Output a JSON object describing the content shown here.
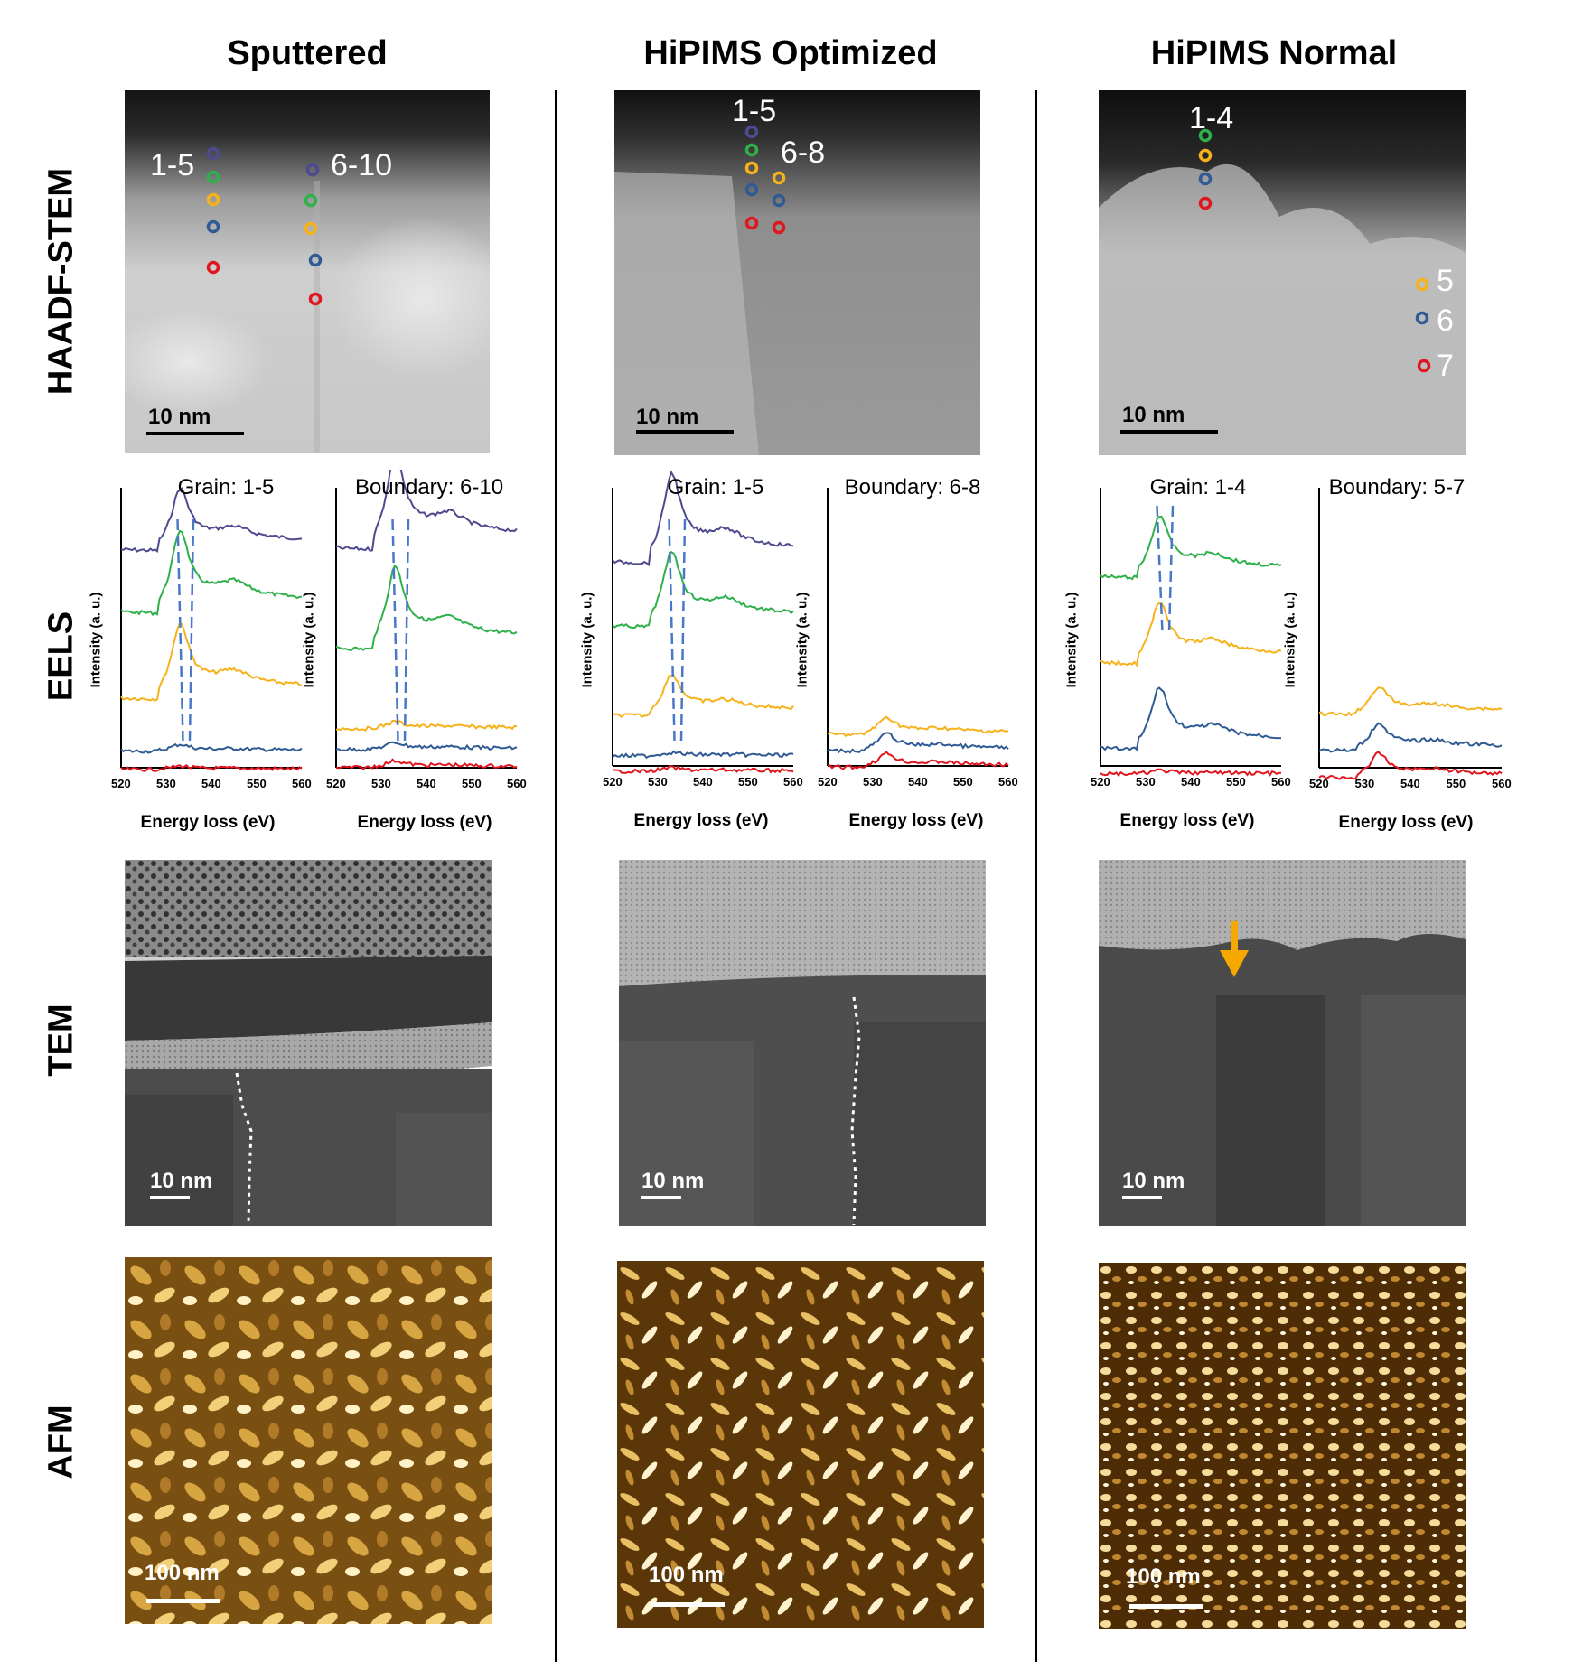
{
  "columns": [
    {
      "title": "Sputtered"
    },
    {
      "title": "HiPIMS Optimized"
    },
    {
      "title": "HiPIMS Normal"
    }
  ],
  "rows": [
    "HAADF-STEM",
    "EELS",
    "TEM",
    "AFM"
  ],
  "stem": [
    {
      "scale": "10 nm",
      "labels": [
        "1-5",
        "6-10"
      ]
    },
    {
      "scale": "10 nm",
      "labels": [
        "1-5",
        "6-8"
      ]
    },
    {
      "scale": "10 nm",
      "labels": [
        "1-4",
        "5",
        "6",
        "7"
      ]
    }
  ],
  "eels": {
    "xlabel": "Energy loss (eV)",
    "ylabel": "Intensity (a. u.)",
    "xticks": [
      "520",
      "530",
      "540",
      "550",
      "560"
    ],
    "panels": [
      {
        "title": "Grain: 1-5"
      },
      {
        "title": "Boundary: 6-10"
      },
      {
        "title": "Grain: 1-5"
      },
      {
        "title": "Boundary: 6-8"
      },
      {
        "title": "Grain: 1-4"
      },
      {
        "title": "Boundary: 5-7"
      }
    ]
  },
  "tem": [
    {
      "scale": "10 nm"
    },
    {
      "scale": "10 nm"
    },
    {
      "scale": "10 nm"
    }
  ],
  "afm": [
    {
      "scale": "100 nm"
    },
    {
      "scale": "100 nm"
    },
    {
      "scale": "100 nm"
    }
  ],
  "colors": {
    "purple": "#4e4a8f",
    "green": "#2eb04a",
    "yellow": "#f5b21b",
    "blue": "#2f5a93",
    "red": "#e0161f",
    "dash": "#4a78c8",
    "arrow": "#f5a800"
  }
}
